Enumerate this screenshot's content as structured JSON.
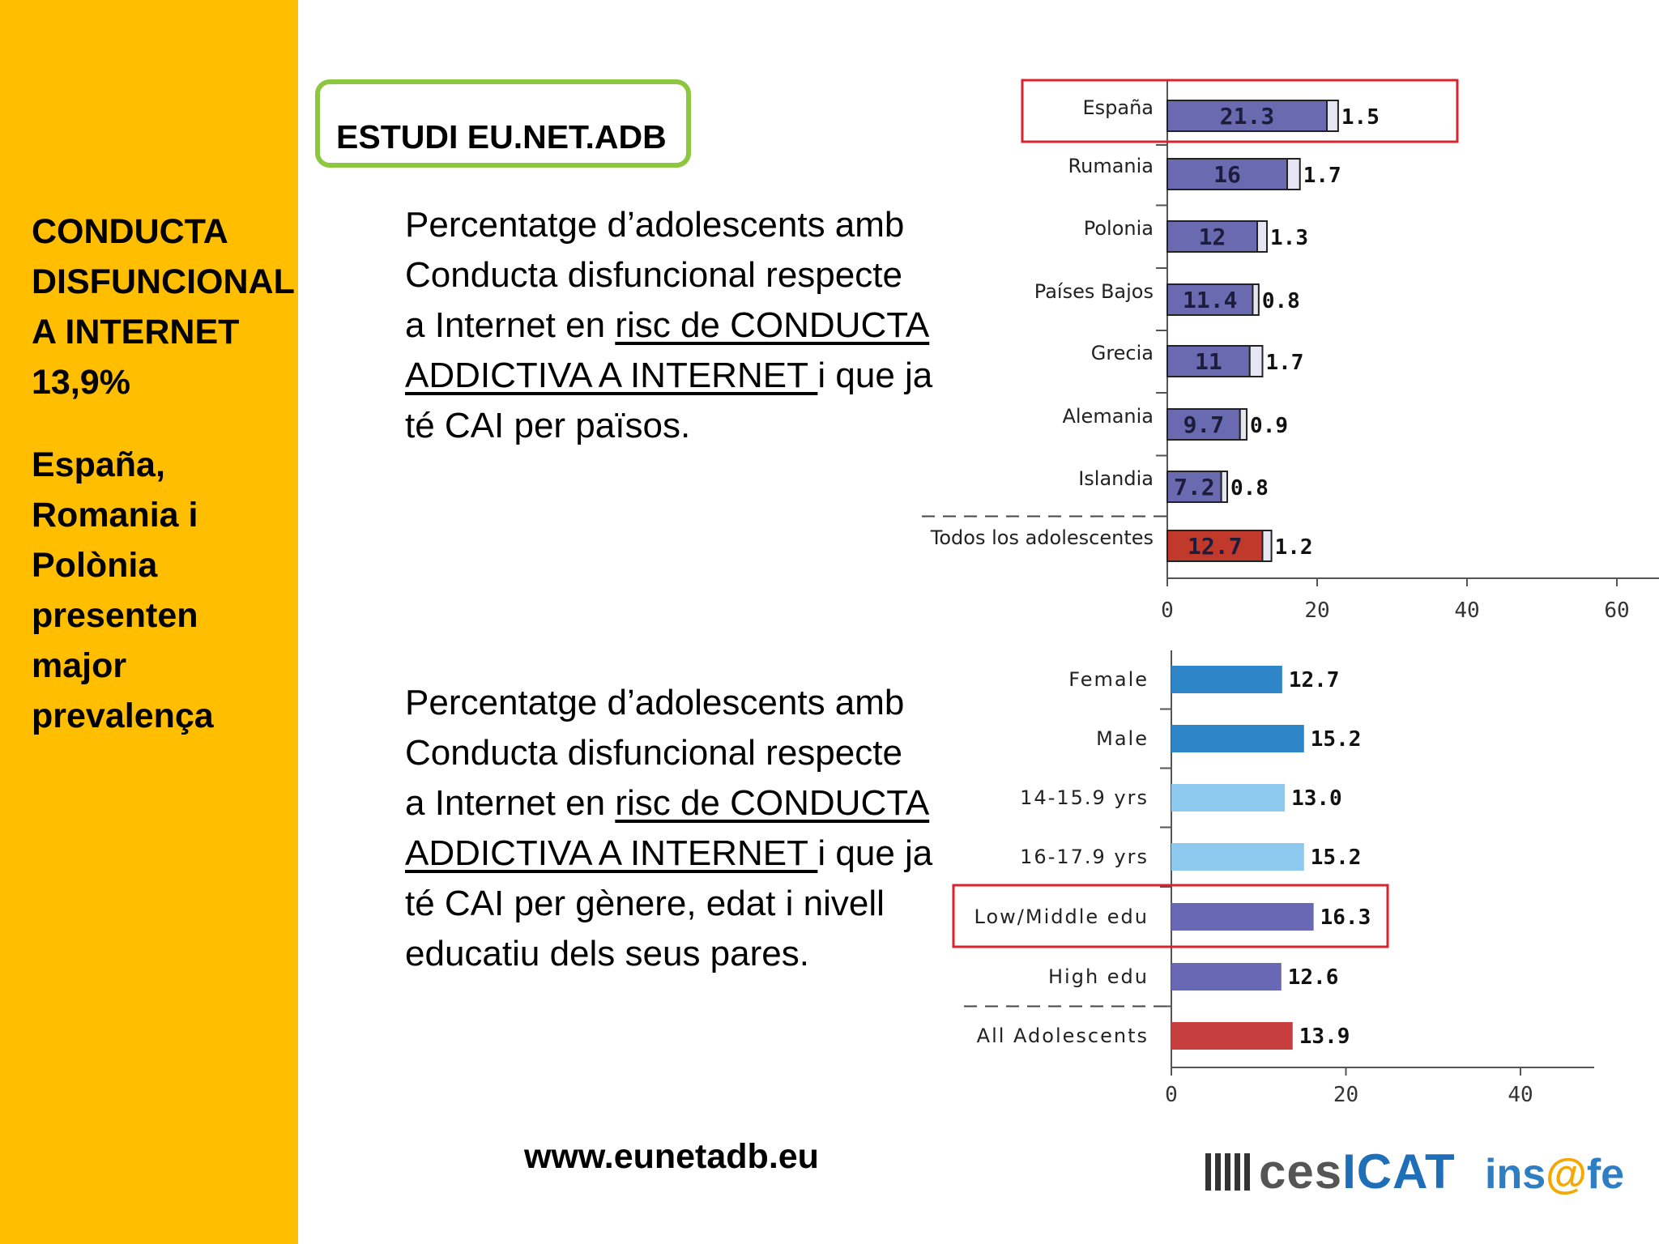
{
  "sidebar": {
    "lines_a": [
      "CONDUCTA",
      "DISFUNCIONAL",
      "A INTERNET",
      "13,9%"
    ],
    "lines_b": [
      "España,",
      "Romania i",
      "Polònia",
      "presenten",
      "major",
      "prevalença"
    ]
  },
  "title": "ESTUDI EU.NET.ADB",
  "description_1": {
    "line1": "Percentatge d’adolescents amb",
    "line2": "Conducta disfuncional respecte",
    "line3_pre": "a Internet en ",
    "line3_u": "risc de CONDUCTA",
    "line4_u": "ADDICTIVA A INTERNET ",
    "line4_post": "i que ja",
    "line5": "té CAI per països."
  },
  "description_2": {
    "line1": "Percentatge d’adolescents amb",
    "line2": "Conducta disfuncional respecte",
    "line3_pre": "a Internet en ",
    "line3_u": "risc de CONDUCTA",
    "line4_u": "ADDICTIVA A INTERNET ",
    "line4_post": "i que ja",
    "line5": "té CAI per gènere, edat i nivell",
    "line6": "educatiu dels seus pares."
  },
  "url": "www.eunetadb.eu",
  "logos": {
    "cesicat_a": "ces",
    "cesicat_b": "ICAT",
    "insafe_a": "ins",
    "insafe_at": "@",
    "insafe_b": "fe"
  },
  "colors": {
    "sidebar": "#FFBE00",
    "title_border": "#8DC63F",
    "bar_purple": "#6A6AB0",
    "bar_red": "#C0392B",
    "bar_blue_dark": "#2E86C8",
    "bar_blue_light": "#8EC9EF",
    "bar_purple_2": "#6868B4",
    "bar_red_2": "#C73E3E",
    "highlight_box": "#D9232E"
  },
  "chart_data": [
    {
      "type": "bar",
      "orientation": "horizontal",
      "stacked": true,
      "categories": [
        "España",
        "Rumania",
        "Polonia",
        "Países Bajos",
        "Grecia",
        "Alemania",
        "Islandia",
        "Todos los adolescentes"
      ],
      "series": [
        {
          "values": [
            21.3,
            16,
            12,
            11.4,
            11,
            9.7,
            7.2,
            12.7
          ]
        },
        {
          "values": [
            1.5,
            1.7,
            1.3,
            0.8,
            1.7,
            0.9,
            0.8,
            1.2
          ]
        }
      ],
      "xlim": [
        0,
        60
      ],
      "xticks": [
        0,
        20,
        40,
        60
      ],
      "highlight": "España",
      "separator_before": "Todos los adolescentes"
    },
    {
      "type": "bar",
      "orientation": "horizontal",
      "categories": [
        "Female",
        "Male",
        "14-15.9 yrs",
        "16-17.9 yrs",
        "Low/Middle edu",
        "High edu",
        "All Adolescents"
      ],
      "values": [
        12.7,
        15.2,
        13.0,
        15.2,
        16.3,
        12.6,
        13.9
      ],
      "labels": [
        "12.7",
        "15.2",
        "13.0",
        "15.2",
        "16.3",
        "12.6",
        "13.9"
      ],
      "xlim": [
        0,
        50
      ],
      "xticks": [
        0,
        20,
        40
      ],
      "highlight": "Low/Middle edu",
      "separator_before": "All Adolescents"
    }
  ]
}
